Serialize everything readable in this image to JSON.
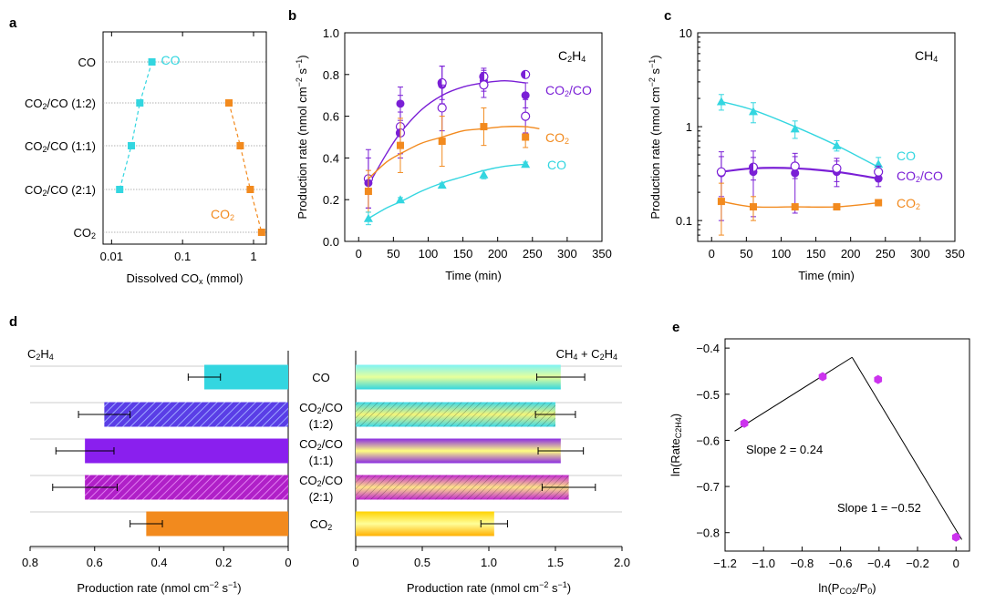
{
  "colors": {
    "co": "#33d6e0",
    "co2": "#f28a1e",
    "mix": "#7a1fd6",
    "mix2": "#b020c8",
    "grid": "#999999"
  },
  "panels": {
    "a": {
      "label": "a",
      "xlabel": "Dissolved CO",
      "xlabel_sub": "x",
      "xlabel_unit": " (mmol)",
      "xticks": [
        {
          "v": 0.01,
          "t": "0.01"
        },
        {
          "v": 0.1,
          "t": "0.1"
        },
        {
          "v": 1,
          "t": "1"
        }
      ],
      "rows": [
        "CO",
        "CO2/CO (1:2)",
        "CO2/CO (1:1)",
        "CO2/CO (2:1)",
        "CO2"
      ],
      "row_labels": [
        {
          "a": "CO",
          "s": "",
          "b": ""
        },
        {
          "a": "CO",
          "s": "2",
          "b": "/CO (1:2)"
        },
        {
          "a": "CO",
          "s": "2",
          "b": "/CO (1:1)"
        },
        {
          "a": "CO",
          "s": "2",
          "b": "/CO (2:1)"
        },
        {
          "a": "CO",
          "s": "2",
          "b": ""
        }
      ],
      "series": [
        {
          "key": "co",
          "legend_a": "CO",
          "legend_s": "",
          "points": [
            {
              "row": 0,
              "x": 0.037
            },
            {
              "row": 1,
              "x": 0.025
            },
            {
              "row": 2,
              "x": 0.019
            },
            {
              "row": 3,
              "x": 0.013
            }
          ]
        },
        {
          "key": "co2",
          "legend_a": "CO",
          "legend_s": "2",
          "points": [
            {
              "row": 1,
              "x": 0.45
            },
            {
              "row": 2,
              "x": 0.65
            },
            {
              "row": 3,
              "x": 0.9
            },
            {
              "row": 4,
              "x": 1.3
            }
          ]
        }
      ]
    },
    "b": {
      "label": "b",
      "title_a": "C",
      "title_s": "2",
      "title_b": "H",
      "title_s2": "4",
      "xlabel": "Time (min)",
      "ylabel": "Production rate (nmol cm",
      "ylabel_sup1": "−2",
      "ylabel_mid": " s",
      "ylabel_sup2": "−1",
      "ylabel_end": ")",
      "xticks": [
        0,
        50,
        100,
        150,
        200,
        250,
        300,
        350
      ],
      "yticks": [
        {
          "v": 0,
          "t": "0.0"
        },
        {
          "v": 0.2,
          "t": "0.2"
        },
        {
          "v": 0.4,
          "t": "0.4"
        },
        {
          "v": 0.6,
          "t": "0.6"
        },
        {
          "v": 0.8,
          "t": "0.8"
        },
        {
          "v": 1.0,
          "t": "1.0"
        }
      ],
      "ylim": [
        0,
        1.0
      ],
      "xlim": [
        -20,
        350
      ],
      "series": [
        {
          "key": "mix",
          "name_a": "CO",
          "name_s": "2",
          "name_b": "/CO",
          "points": [
            {
              "x": 14,
              "y": 0.3,
              "e": 0.14,
              "m": "circle-open"
            },
            {
              "x": 14,
              "y": 0.28,
              "e": 0.12,
              "m": "circle"
            },
            {
              "x": 60,
              "y": 0.66,
              "e": 0.08,
              "m": "circle"
            },
            {
              "x": 60,
              "y": 0.55,
              "e": 0.15,
              "m": "circle-open"
            },
            {
              "x": 60,
              "y": 0.52,
              "e": 0.1,
              "m": "circle-half"
            },
            {
              "x": 120,
              "y": 0.75,
              "e": 0.09,
              "m": "circle"
            },
            {
              "x": 120,
              "y": 0.76,
              "e": 0.08,
              "m": "circle-half"
            },
            {
              "x": 120,
              "y": 0.64,
              "e": 0.11,
              "m": "circle-open"
            },
            {
              "x": 180,
              "y": 0.77,
              "e": 0.05,
              "m": "circle"
            },
            {
              "x": 180,
              "y": 0.79,
              "e": 0.04,
              "m": "circle-half"
            },
            {
              "x": 180,
              "y": 0.75,
              "e": 0.06,
              "m": "circle-open"
            },
            {
              "x": 240,
              "y": 0.8,
              "e": 0.0,
              "m": "circle-half"
            },
            {
              "x": 240,
              "y": 0.7,
              "e": 0.06,
              "m": "circle"
            },
            {
              "x": 240,
              "y": 0.6,
              "e": 0.08,
              "m": "circle-open"
            }
          ],
          "fit": [
            [
              14,
              0.27
            ],
            [
              40,
              0.42
            ],
            [
              60,
              0.52
            ],
            [
              90,
              0.63
            ],
            [
              120,
              0.7
            ],
            [
              150,
              0.74
            ],
            [
              180,
              0.76
            ],
            [
              210,
              0.77
            ],
            [
              240,
              0.76
            ]
          ]
        },
        {
          "key": "co2",
          "name_a": "CO",
          "name_s": "2",
          "name_b": "",
          "points": [
            {
              "x": 14,
              "y": 0.24,
              "e": 0.1,
              "m": "square"
            },
            {
              "x": 60,
              "y": 0.46,
              "e": 0.13,
              "m": "square"
            },
            {
              "x": 120,
              "y": 0.48,
              "e": 0.12,
              "m": "square"
            },
            {
              "x": 180,
              "y": 0.55,
              "e": 0.09,
              "m": "square"
            },
            {
              "x": 240,
              "y": 0.5,
              "e": 0.05,
              "m": "square"
            }
          ],
          "fit": [
            [
              14,
              0.3
            ],
            [
              40,
              0.38
            ],
            [
              60,
              0.42
            ],
            [
              90,
              0.47
            ],
            [
              120,
              0.5
            ],
            [
              150,
              0.53
            ],
            [
              180,
              0.54
            ],
            [
              210,
              0.55
            ],
            [
              240,
              0.55
            ],
            [
              260,
              0.54
            ]
          ]
        },
        {
          "key": "co",
          "name_a": "CO",
          "name_s": "",
          "name_b": "",
          "points": [
            {
              "x": 14,
              "y": 0.11,
              "e": 0.03,
              "m": "triangle"
            },
            {
              "x": 60,
              "y": 0.2,
              "e": 0.01,
              "m": "triangle"
            },
            {
              "x": 120,
              "y": 0.27,
              "e": 0.01,
              "m": "triangle"
            },
            {
              "x": 180,
              "y": 0.32,
              "e": 0.02,
              "m": "triangle"
            },
            {
              "x": 240,
              "y": 0.37,
              "e": 0.01,
              "m": "triangle"
            }
          ],
          "fit": [
            [
              14,
              0.11
            ],
            [
              40,
              0.16
            ],
            [
              60,
              0.19
            ],
            [
              90,
              0.24
            ],
            [
              120,
              0.28
            ],
            [
              150,
              0.31
            ],
            [
              180,
              0.34
            ],
            [
              210,
              0.36
            ],
            [
              240,
              0.37
            ]
          ]
        }
      ]
    },
    "c": {
      "label": "c",
      "title_a": "CH",
      "title_s": "4",
      "xlabel": "Time (min)",
      "ylabel": "Production rate (nmol cm",
      "ylabel_sup1": "−2",
      "ylabel_mid": " s",
      "ylabel_sup2": "−1",
      "ylabel_end": ")",
      "xticks": [
        0,
        50,
        100,
        150,
        200,
        250,
        300,
        350
      ],
      "yticks": [
        {
          "v": 0.1,
          "t": "0.1"
        },
        {
          "v": 1,
          "t": "1"
        },
        {
          "v": 10,
          "t": "10"
        }
      ],
      "ylim": [
        0.06,
        10
      ],
      "xlim": [
        -20,
        350
      ],
      "yscale": "log",
      "series": [
        {
          "key": "co",
          "name_a": "CO",
          "name_s": "",
          "name_b": "",
          "points": [
            {
              "x": 14,
              "y": 1.85,
              "e": 0.35,
              "m": "triangle"
            },
            {
              "x": 60,
              "y": 1.45,
              "e": 0.35,
              "m": "triangle"
            },
            {
              "x": 120,
              "y": 0.95,
              "e": 0.2,
              "m": "triangle"
            },
            {
              "x": 180,
              "y": 0.63,
              "e": 0.08,
              "m": "triangle"
            },
            {
              "x": 240,
              "y": 0.4,
              "e": 0.07,
              "m": "triangle"
            }
          ],
          "fit": [
            [
              14,
              1.85
            ],
            [
              60,
              1.5
            ],
            [
              120,
              1.0
            ],
            [
              180,
              0.63
            ],
            [
              240,
              0.37
            ]
          ]
        },
        {
          "key": "mix",
          "name_a": "CO",
          "name_s": "2",
          "name_b": "/CO",
          "points": [
            {
              "x": 14,
              "y": 0.32,
              "e": 0.22,
              "m": "circle"
            },
            {
              "x": 14,
              "y": 0.33,
              "e": 0.15,
              "m": "circle-open"
            },
            {
              "x": 60,
              "y": 0.33,
              "e": 0.22,
              "m": "circle"
            },
            {
              "x": 60,
              "y": 0.37,
              "e": 0.1,
              "m": "circle-half"
            },
            {
              "x": 120,
              "y": 0.32,
              "e": 0.2,
              "m": "circle"
            },
            {
              "x": 120,
              "y": 0.38,
              "e": 0.1,
              "m": "circle-open"
            },
            {
              "x": 180,
              "y": 0.33,
              "e": 0.1,
              "m": "circle"
            },
            {
              "x": 180,
              "y": 0.36,
              "e": 0.1,
              "m": "circle-open"
            },
            {
              "x": 240,
              "y": 0.28,
              "e": 0.05,
              "m": "circle"
            },
            {
              "x": 240,
              "y": 0.33,
              "e": 0.05,
              "m": "circle-open"
            }
          ],
          "fit": [
            [
              14,
              0.33
            ],
            [
              60,
              0.36
            ],
            [
              120,
              0.36
            ],
            [
              180,
              0.33
            ],
            [
              240,
              0.28
            ]
          ]
        },
        {
          "key": "co2",
          "name_a": "CO",
          "name_s": "2",
          "name_b": "",
          "points": [
            {
              "x": 14,
              "y": 0.16,
              "e": 0.09,
              "m": "square"
            },
            {
              "x": 60,
              "y": 0.14,
              "e": 0.04,
              "m": "square"
            },
            {
              "x": 120,
              "y": 0.14,
              "e": 0.0,
              "m": "square"
            },
            {
              "x": 180,
              "y": 0.14,
              "e": 0.0,
              "m": "square"
            },
            {
              "x": 240,
              "y": 0.155,
              "e": 0.0,
              "m": "square"
            }
          ],
          "fit": [
            [
              14,
              0.16
            ],
            [
              60,
              0.14
            ],
            [
              120,
              0.14
            ],
            [
              180,
              0.14
            ],
            [
              240,
              0.155
            ]
          ]
        }
      ]
    },
    "d": {
      "label": "d",
      "left_title_a": "C",
      "left_title_s": "2",
      "left_title_b": "H",
      "left_title_s2": "4",
      "right_title": "CH",
      "right_title_s": "4",
      "right_title_b": " + C",
      "right_title_s2": "2",
      "right_title_c": "H",
      "right_title_s3": "4",
      "xlabel_a": "Production rate (nmol cm",
      "xlabel_sup": "−2",
      "xlabel_b": " s",
      "xlabel_sup2": "−1",
      "xlabel_c": ")",
      "left_xticks": [
        {
          "v": 0.8,
          "t": "0.8"
        },
        {
          "v": 0.6,
          "t": "0.6"
        },
        {
          "v": 0.4,
          "t": "0.4"
        },
        {
          "v": 0.2,
          "t": "0.2"
        },
        {
          "v": 0,
          "t": "0"
        }
      ],
      "right_xticks": [
        {
          "v": 0,
          "t": "0"
        },
        {
          "v": 0.5,
          "t": "0.5"
        },
        {
          "v": 1.0,
          "t": "1.0"
        },
        {
          "v": 1.5,
          "t": "1.5"
        },
        {
          "v": 2.0,
          "t": "2.0"
        }
      ],
      "categories": [
        {
          "a": "CO",
          "s": "",
          "b": "",
          "c": ""
        },
        {
          "a": "CO",
          "s": "2",
          "b": "/CO",
          "c": "(1:2)"
        },
        {
          "a": "CO",
          "s": "2",
          "b": "/CO",
          "c": "(1:1)"
        },
        {
          "a": "CO",
          "s": "2",
          "b": "/CO",
          "c": "(2:1)"
        },
        {
          "a": "CO",
          "s": "2",
          "b": "",
          "c": ""
        }
      ],
      "left_values": [
        {
          "v": 0.26,
          "e": 0.05
        },
        {
          "v": 0.57,
          "e": 0.08
        },
        {
          "v": 0.63,
          "e": 0.09
        },
        {
          "v": 0.63,
          "e": 0.1
        },
        {
          "v": 0.44,
          "e": 0.05
        }
      ],
      "right_values": [
        {
          "v": 1.54,
          "e": 0.18
        },
        {
          "v": 1.5,
          "e": 0.15
        },
        {
          "v": 1.54,
          "e": 0.17
        },
        {
          "v": 1.6,
          "e": 0.2
        },
        {
          "v": 1.04,
          "e": 0.1
        }
      ]
    },
    "e": {
      "label": "e",
      "xlabel_a": "ln(P",
      "xlabel_s": "CO2",
      "xlabel_b": "/P",
      "xlabel_s2": "0",
      "xlabel_c": ")",
      "ylabel_a": "ln(Rate",
      "ylabel_s": "C2H4",
      "ylabel_b": ")",
      "xticks": [
        {
          "v": -1.2,
          "t": "−1.2"
        },
        {
          "v": -1.0,
          "t": "−1.0"
        },
        {
          "v": -0.8,
          "t": "−0.8"
        },
        {
          "v": -0.6,
          "t": "−0.6"
        },
        {
          "v": -0.4,
          "t": "−0.4"
        },
        {
          "v": -0.2,
          "t": "−0.2"
        },
        {
          "v": 0,
          "t": "0"
        }
      ],
      "yticks": [
        {
          "v": -0.4,
          "t": "−0.4"
        },
        {
          "v": -0.5,
          "t": "−0.5"
        },
        {
          "v": -0.6,
          "t": "−0.6"
        },
        {
          "v": -0.7,
          "t": "−0.7"
        },
        {
          "v": -0.8,
          "t": "−0.8"
        }
      ],
      "xlim": [
        -1.2,
        0.07
      ],
      "ylim": [
        -0.84,
        -0.38
      ],
      "points": [
        {
          "x": -1.1,
          "y": -0.563
        },
        {
          "x": -0.693,
          "y": -0.462
        },
        {
          "x": -0.405,
          "y": -0.468
        },
        {
          "x": 0,
          "y": -0.81
        }
      ],
      "lines": [
        [
          [
            -1.15,
            -0.58
          ],
          [
            -0.54,
            -0.42
          ]
        ],
        [
          [
            -0.54,
            -0.42
          ],
          [
            0.03,
            -0.815
          ]
        ]
      ],
      "slope2_label": "Slope 2 = 0.24",
      "slope1_label": "Slope 1 = −0.52"
    }
  }
}
